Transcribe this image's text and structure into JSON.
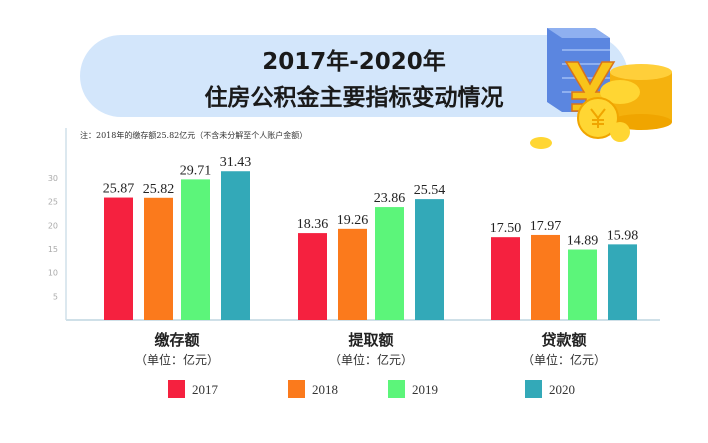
{
  "header": {
    "title_line1": "2017年-2020年",
    "title_line2": "住房公积金主要指标变动情况",
    "decoration": "yuan-coins-icon"
  },
  "chart_data": {
    "type": "bar",
    "title": "2017年-2020年 住房公积金主要指标变动情况",
    "note": "注：2018年的缴存额25.82亿元（不含未分解至个人账户金额）",
    "categories": [
      "缴存额",
      "提取额",
      "贷款额"
    ],
    "unit_label": "（单位：亿元）",
    "series": [
      {
        "name": "2017",
        "color": "#f5213f",
        "values": [
          25.87,
          18.36,
          17.5
        ]
      },
      {
        "name": "2018",
        "color": "#fb7a1c",
        "values": [
          25.82,
          19.26,
          17.97
        ]
      },
      {
        "name": "2019",
        "color": "#5cf57a",
        "values": [
          29.71,
          23.86,
          14.89
        ]
      },
      {
        "name": "2020",
        "color": "#33a9b8",
        "values": [
          31.43,
          25.54,
          15.98
        ]
      }
    ],
    "value_labels": [
      [
        "25.87",
        "18.36",
        "17.50"
      ],
      [
        "25.82",
        "19.26",
        "17.97"
      ],
      [
        "29.71",
        "23.86",
        "14.89"
      ],
      [
        "31.43",
        "25.54",
        "15.98"
      ]
    ],
    "yticks": [
      "5",
      "10",
      "15",
      "20",
      "25",
      "30"
    ],
    "ylim": [
      0,
      32
    ],
    "legend_position": "bottom",
    "grid": false
  }
}
